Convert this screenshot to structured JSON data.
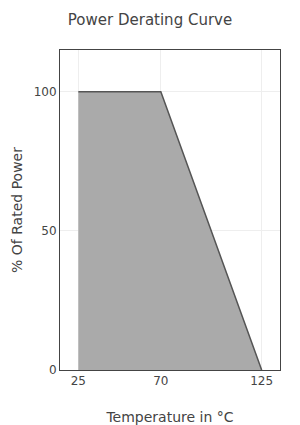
{
  "chart_data": {
    "type": "area",
    "title": "Power Derating Curve",
    "x": [
      25,
      70,
      125
    ],
    "values": [
      100,
      100,
      0
    ],
    "color": "#aaaaaa",
    "xlabel": "Temperature in °C",
    "ylabel": "% Of Rated Power",
    "xlim": [
      15,
      135
    ],
    "ylim": [
      0,
      115
    ],
    "xticks": [
      25,
      70,
      125
    ],
    "yticks": [
      0,
      50,
      100
    ],
    "grid": true
  }
}
